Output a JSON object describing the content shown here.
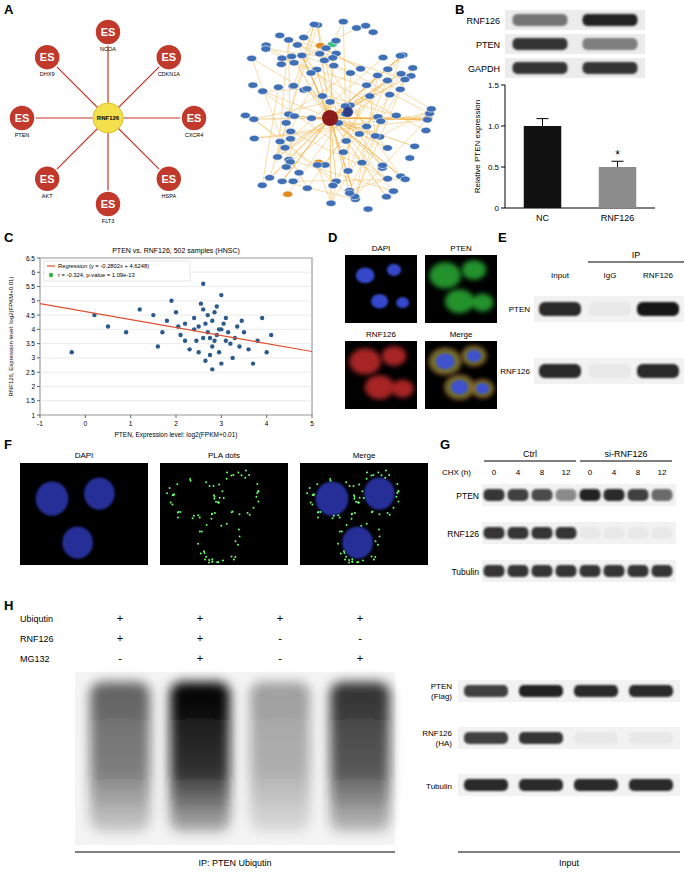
{
  "panel_labels": [
    "A",
    "B",
    "C",
    "D",
    "E",
    "F",
    "G",
    "H"
  ],
  "network": {
    "hub": "RNF126",
    "node_badge": "ES",
    "spokes": [
      "NCOA",
      "CDKN1A",
      "CXCR4",
      "HSPA",
      "FLT3",
      "AKT",
      "PTEN",
      "DHX9"
    ]
  },
  "blot_B": {
    "rows": [
      "RNF126",
      "PTEN",
      "GAPDH"
    ],
    "intensity": [
      [
        0.55,
        0.95
      ],
      [
        0.85,
        0.5
      ],
      [
        0.85,
        0.85
      ]
    ]
  },
  "chart_data": [
    {
      "type": "bar",
      "categories": [
        "NC",
        "RNF126"
      ],
      "values": [
        1.0,
        0.5
      ],
      "errors": [
        0.09,
        0.07
      ],
      "colors": [
        "#111111",
        "#8c8c8c"
      ],
      "ylim": [
        0,
        1.5
      ],
      "yticks": [
        0,
        0.5,
        {
          "value": 1,
          "label": "1.0"
        },
        1.5
      ],
      "y_label": "Relative PTEN expression",
      "annotations": [
        {
          "category": "RNF126",
          "text": "*"
        }
      ]
    },
    {
      "type": "scatter",
      "title": "PTEN vs. RNF126, 502 samples (HNSC)",
      "x_label": "PTEN, Expression level: log2(FPKM+0.01)",
      "y_label": "RNF126, Expression level: log2(FPKM+0.01)",
      "legend_entries": [
        "Regression (y = -0.2802x + 4.6248)",
        "r = -0.324, p-value = 1.09e-13"
      ],
      "legend": "top-left",
      "grid": true,
      "regression": {
        "slope": -0.2802,
        "intercept": 4.6248
      },
      "color": "#2b5b8c",
      "x": [
        2.5,
        2.7,
        2.9,
        3.1,
        2.8,
        2.6,
        3.0,
        3.2,
        2.4,
        2.2,
        2.0,
        1.8,
        3.4,
        3.6,
        3.8,
        4.0,
        2.75,
        2.85,
        2.95,
        3.05,
        2.65,
        2.55,
        2.45,
        3.15,
        3.25,
        3.35,
        1.5,
        1.2,
        0.9,
        -0.3,
        0.2,
        0.5,
        2.1,
        2.3,
        1.9,
        3.5,
        3.7,
        2.6,
        2.8,
        3.0,
        2.7,
        2.9,
        3.1,
        2.5,
        2.4,
        2.2,
        3.3,
        3.0,
        2.6,
        2.8,
        2.75,
        2.95,
        2.85,
        2.65,
        3.45,
        1.7,
        1.6,
        2.05,
        4.1,
        3.9
      ],
      "values": [
        4.1,
        3.9,
        3.8,
        3.6,
        4.3,
        3.7,
        4.0,
        3.5,
        4.4,
        4.2,
        4.6,
        4.3,
        3.4,
        3.3,
        3.6,
        3.2,
        3.1,
        4.6,
        3.2,
        4.2,
        2.9,
        4.9,
        3.6,
        3.9,
        3.0,
        4.1,
        4.5,
        4.7,
        3.9,
        3.2,
        4.5,
        4.1,
        3.8,
        3.3,
        5.0,
        3.9,
        2.8,
        4.7,
        3.4,
        2.8,
        4.5,
        4.8,
        4.4,
        3.2,
        4.0,
        3.6,
        3.7,
        5.2,
        5.6,
        2.6,
        3.7,
        4.0,
        3.6,
        4.2,
        4.3,
        3.9,
        3.4,
        4.1,
        3.8,
        4.4
      ],
      "xlim": [
        -1,
        5
      ],
      "xticks": [
        -1,
        0,
        1,
        2,
        3,
        4,
        5
      ],
      "ylim": [
        1,
        6.5
      ],
      "yticks": [
        1,
        1.5,
        2,
        2.5,
        3,
        3.5,
        4,
        4.5,
        5,
        5.5,
        6,
        6.5
      ]
    }
  ],
  "if_D": {
    "panels": [
      "DAPI",
      "PTEN",
      "RNF126",
      "Merge"
    ]
  },
  "ip_E": {
    "ip_label": "IP",
    "lanes": [
      "Input",
      "IgG",
      "RNF126"
    ],
    "rows": [
      "PTEN",
      "RNF126"
    ],
    "intensity": [
      [
        0.9,
        0,
        1.0
      ],
      [
        0.9,
        0,
        0.9
      ]
    ]
  },
  "pla_F": {
    "panels": [
      "DAPI",
      "PLA dots",
      "Merge"
    ]
  },
  "chx_G": {
    "groups": [
      "Ctrl",
      "si-RNF126"
    ],
    "time_label": "CHX (h)",
    "times": [
      0,
      4,
      8,
      12,
      0,
      4,
      8,
      12
    ],
    "rows": [
      "PTEN",
      "RNF126",
      "Tubulin"
    ],
    "intensity": [
      [
        0.85,
        0.8,
        0.75,
        0.45,
        0.95,
        0.9,
        0.8,
        0.6
      ],
      [
        0.85,
        0.85,
        0.85,
        0.85,
        0,
        0,
        0,
        0
      ],
      [
        0.85,
        0.85,
        0.85,
        0.85,
        0.85,
        0.85,
        0.85,
        0.85
      ]
    ]
  },
  "ub_H": {
    "conditions": [
      {
        "label": "Ubiqutin",
        "signs": [
          "+",
          "+",
          "+",
          "+"
        ]
      },
      {
        "label": "RNF126",
        "signs": [
          "+",
          "+",
          "-",
          "-"
        ]
      },
      {
        "label": "MG132",
        "signs": [
          "-",
          "+",
          "-",
          "+"
        ]
      }
    ],
    "smear_intensity": [
      0.6,
      1.0,
      0.35,
      0.8
    ],
    "ip_caption": "IP: PTEN Ubiqutin",
    "input_rows": [
      [
        "PTEN",
        "(Flag)"
      ],
      [
        "RNF126",
        "(HA)"
      ],
      [
        "Tubulin"
      ]
    ],
    "input_intensity": [
      [
        0.8,
        0.95,
        0.9,
        0.9
      ],
      [
        0.8,
        0.85,
        0,
        0
      ],
      [
        0.9,
        0.9,
        0.9,
        0.9
      ]
    ],
    "input_caption": "Input"
  }
}
